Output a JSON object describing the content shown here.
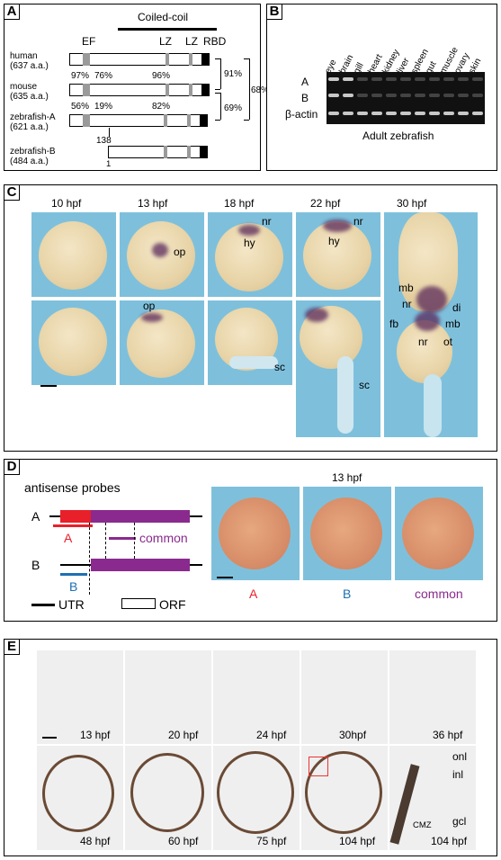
{
  "panels": {
    "a": {
      "label": "A",
      "coiled_coil": "Coiled-coil",
      "domains": {
        "ef": "EF",
        "lz1": "LZ",
        "lz2": "LZ",
        "rbd": "RBD"
      },
      "species": [
        {
          "name": "human",
          "len": "(637 a.a.)"
        },
        {
          "name": "mouse",
          "len": "(635 a.a.)"
        },
        {
          "name": "zebrafish-A",
          "len": "(621 a.a.)"
        },
        {
          "name": "zebrafish-B",
          "len": "(484 a.a.)"
        }
      ],
      "pct": {
        "hm_left": "97%",
        "hm_mid": "76%",
        "hm_right": "96%",
        "mz_left": "56%",
        "mz_mid": "19%",
        "mz_right": "82%",
        "br_91": "91%",
        "br_69": "69%",
        "br_68": "68%"
      },
      "pos_138": "138",
      "pos_1": "1"
    },
    "b": {
      "label": "B",
      "tissues": [
        "eye",
        "brain",
        "gill",
        "heart",
        "kidney",
        "liver",
        "spleen",
        "gut",
        "muscle",
        "ovary",
        "skin"
      ],
      "rows": [
        "A",
        "B",
        "β-actin"
      ],
      "caption": "Adult zebrafish"
    },
    "c": {
      "label": "C",
      "stages": [
        "10 hpf",
        "13 hpf",
        "18 hpf",
        "22 hpf",
        "30 hpf"
      ],
      "labels": {
        "op": "op",
        "nr": "nr",
        "hy": "hy",
        "mb": "mb",
        "di": "di",
        "fb": "fb",
        "ot": "ot",
        "sc": "sc"
      }
    },
    "d": {
      "label": "D",
      "title": "antisense probes",
      "rowA": "A",
      "rowB": "B",
      "probeA": "A",
      "probeB": "B",
      "probeCommon": "common",
      "legend_utr": "UTR",
      "legend_orf": "ORF",
      "stage": "13 hpf",
      "captions": [
        "A",
        "B",
        "common"
      ],
      "colors": {
        "a": "#e8202a",
        "b": "#1d6fb3",
        "common": "#8a2a8e"
      }
    },
    "e": {
      "label": "E",
      "top_stages": [
        "13 hpf",
        "20 hpf",
        "24 hpf",
        "30hpf",
        "36 hpf"
      ],
      "bottom_stages": [
        "48 hpf",
        "60 hpf",
        "75 hpf",
        "104 hpf",
        "104 hpf"
      ],
      "layers": {
        "onl": "onl",
        "inl": "inl",
        "gcl": "gcl",
        "cmz": "CMZ"
      }
    }
  }
}
